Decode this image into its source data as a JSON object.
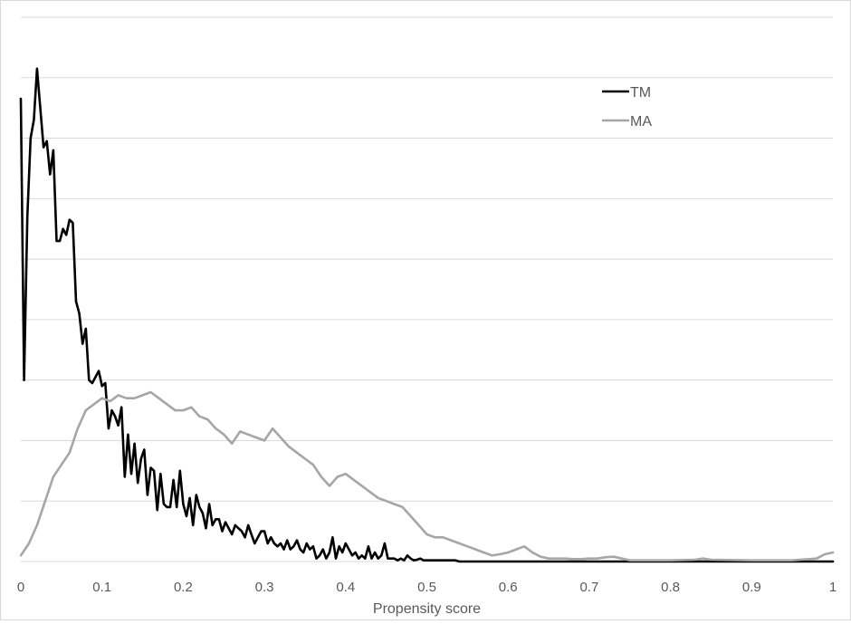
{
  "chart_data": {
    "type": "line",
    "title": "",
    "xlabel": "Propensity score",
    "ylabel": "",
    "xlim": [
      0,
      1
    ],
    "ylim": [
      0,
      9
    ],
    "x_ticks": [
      0,
      0.1,
      0.2,
      0.3,
      0.4,
      0.5,
      0.6,
      0.7,
      0.8,
      0.9,
      1
    ],
    "x_tick_labels": [
      "0",
      "0.1",
      "0.2",
      "0.3",
      "0.4",
      "0.5",
      "0.6",
      "0.7",
      "0.8",
      "0.9",
      "1"
    ],
    "grid": "horizontal",
    "gridlines_y": [
      1,
      2,
      3,
      4,
      5,
      6,
      7,
      8,
      9
    ],
    "legend_position": "top-right",
    "series": [
      {
        "name": "TM",
        "color": "#000000",
        "x": [
          0,
          0.004,
          0.008,
          0.012,
          0.016,
          0.02,
          0.024,
          0.028,
          0.032,
          0.036,
          0.04,
          0.044,
          0.048,
          0.052,
          0.056,
          0.06,
          0.064,
          0.068,
          0.072,
          0.076,
          0.08,
          0.084,
          0.088,
          0.092,
          0.096,
          0.1,
          0.104,
          0.108,
          0.112,
          0.116,
          0.12,
          0.124,
          0.128,
          0.132,
          0.136,
          0.14,
          0.144,
          0.148,
          0.152,
          0.156,
          0.16,
          0.164,
          0.168,
          0.172,
          0.176,
          0.18,
          0.184,
          0.188,
          0.192,
          0.196,
          0.2,
          0.204,
          0.208,
          0.212,
          0.216,
          0.22,
          0.224,
          0.228,
          0.232,
          0.236,
          0.24,
          0.244,
          0.248,
          0.252,
          0.256,
          0.26,
          0.264,
          0.268,
          0.272,
          0.276,
          0.28,
          0.284,
          0.288,
          0.292,
          0.296,
          0.3,
          0.304,
          0.308,
          0.312,
          0.316,
          0.32,
          0.324,
          0.328,
          0.332,
          0.336,
          0.34,
          0.344,
          0.348,
          0.352,
          0.356,
          0.36,
          0.364,
          0.368,
          0.372,
          0.376,
          0.38,
          0.384,
          0.388,
          0.392,
          0.396,
          0.4,
          0.404,
          0.408,
          0.412,
          0.416,
          0.42,
          0.424,
          0.428,
          0.432,
          0.436,
          0.44,
          0.444,
          0.448,
          0.452,
          0.456,
          0.46,
          0.464,
          0.468,
          0.472,
          0.476,
          0.48,
          0.484,
          0.488,
          0.492,
          0.496,
          0.5,
          0.505,
          0.51,
          0.515,
          0.52,
          0.525,
          0.53,
          0.535,
          0.54,
          0.545,
          0.55,
          0.56,
          0.57,
          0.58,
          0.59,
          0.6,
          0.61,
          0.62,
          0.63,
          0.64,
          0.65,
          0.7,
          0.75,
          0.8,
          0.83,
          0.84,
          0.85,
          0.9,
          0.95,
          1.0
        ],
        "y": [
          7.65,
          3.0,
          5.7,
          7.0,
          7.3,
          8.15,
          7.5,
          6.85,
          6.95,
          6.4,
          6.8,
          5.3,
          5.3,
          5.5,
          5.4,
          5.65,
          5.6,
          4.3,
          4.1,
          3.6,
          3.85,
          3.0,
          2.95,
          3.05,
          3.15,
          2.9,
          2.95,
          2.2,
          2.5,
          2.4,
          2.25,
          2.55,
          1.4,
          2.1,
          1.45,
          1.95,
          1.3,
          1.7,
          1.85,
          1.1,
          1.55,
          1.5,
          0.85,
          1.45,
          0.95,
          0.9,
          0.9,
          1.35,
          0.9,
          1.5,
          0.95,
          0.75,
          1.05,
          0.6,
          1.1,
          0.9,
          0.8,
          0.55,
          0.95,
          0.6,
          0.7,
          0.7,
          0.5,
          0.65,
          0.55,
          0.45,
          0.6,
          0.55,
          0.5,
          0.4,
          0.6,
          0.45,
          0.3,
          0.4,
          0.5,
          0.5,
          0.3,
          0.4,
          0.3,
          0.25,
          0.3,
          0.2,
          0.35,
          0.2,
          0.25,
          0.35,
          0.2,
          0.15,
          0.3,
          0.2,
          0.25,
          0.05,
          0.1,
          0.2,
          0.05,
          0.15,
          0.4,
          0.05,
          0.25,
          0.15,
          0.3,
          0.2,
          0.1,
          0.15,
          0.05,
          0.1,
          0.05,
          0.25,
          0.05,
          0.15,
          0.05,
          0.1,
          0.3,
          0.05,
          0.05,
          0.05,
          0.02,
          0.05,
          0.02,
          0.1,
          0.05,
          0.02,
          0.03,
          0.05,
          0.02,
          0.02,
          0.02,
          0.02,
          0.02,
          0.02,
          0.02,
          0.02,
          0.02,
          0.0,
          0.0,
          0.0,
          0.0,
          0.0,
          0.0,
          0.0,
          0.0,
          0.0,
          0.0,
          0.0,
          0.0,
          0.0,
          0.0,
          0.0,
          0.0,
          0.0,
          0.0,
          0.0,
          0.0,
          0.0,
          0.0
        ]
      },
      {
        "name": "MA",
        "color": "#a6a6a6",
        "x": [
          0,
          0.01,
          0.02,
          0.03,
          0.04,
          0.05,
          0.06,
          0.07,
          0.08,
          0.09,
          0.1,
          0.11,
          0.12,
          0.13,
          0.14,
          0.15,
          0.16,
          0.17,
          0.18,
          0.19,
          0.2,
          0.21,
          0.22,
          0.23,
          0.24,
          0.25,
          0.26,
          0.27,
          0.28,
          0.29,
          0.3,
          0.31,
          0.32,
          0.33,
          0.34,
          0.35,
          0.36,
          0.37,
          0.38,
          0.39,
          0.4,
          0.41,
          0.42,
          0.43,
          0.44,
          0.45,
          0.46,
          0.47,
          0.48,
          0.49,
          0.5,
          0.51,
          0.52,
          0.53,
          0.54,
          0.55,
          0.56,
          0.57,
          0.58,
          0.59,
          0.6,
          0.61,
          0.62,
          0.63,
          0.64,
          0.65,
          0.66,
          0.67,
          0.68,
          0.69,
          0.7,
          0.71,
          0.72,
          0.73,
          0.74,
          0.75,
          0.8,
          0.83,
          0.84,
          0.85,
          0.9,
          0.95,
          0.98,
          0.99,
          1.0
        ],
        "y": [
          0.1,
          0.3,
          0.6,
          1.0,
          1.4,
          1.6,
          1.8,
          2.2,
          2.5,
          2.6,
          2.7,
          2.65,
          2.75,
          2.7,
          2.7,
          2.75,
          2.8,
          2.7,
          2.6,
          2.5,
          2.5,
          2.55,
          2.4,
          2.35,
          2.2,
          2.1,
          1.95,
          2.15,
          2.1,
          2.05,
          2.0,
          2.2,
          2.05,
          1.9,
          1.8,
          1.7,
          1.6,
          1.4,
          1.25,
          1.4,
          1.45,
          1.35,
          1.25,
          1.15,
          1.05,
          1.0,
          0.95,
          0.9,
          0.75,
          0.6,
          0.45,
          0.4,
          0.4,
          0.35,
          0.3,
          0.25,
          0.2,
          0.15,
          0.1,
          0.12,
          0.15,
          0.2,
          0.25,
          0.15,
          0.08,
          0.05,
          0.05,
          0.05,
          0.04,
          0.04,
          0.05,
          0.05,
          0.07,
          0.08,
          0.05,
          0.02,
          0.02,
          0.03,
          0.05,
          0.03,
          0.02,
          0.02,
          0.05,
          0.12,
          0.15
        ]
      }
    ]
  }
}
